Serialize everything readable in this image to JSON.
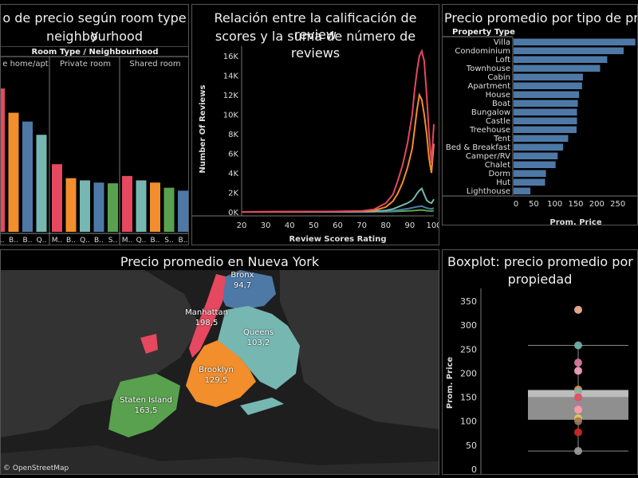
{
  "panel1": {
    "title_line1": "o de precio según room type y",
    "title_line2": "neighbourhood",
    "header": "Room Type  /  Neighbourhood",
    "groups": [
      {
        "label": "e home/apt",
        "ticks": [
          "B..",
          "B..",
          "B..",
          "Q.."
        ],
        "values": [
          195,
          162,
          150,
          132
        ],
        "colors": [
          "#e5485f",
          "#f28e2b",
          "#4e79a7",
          "#76b7b2"
        ]
      },
      {
        "label": "Private room",
        "ticks": [
          "M..",
          "B..",
          "Q..",
          "B..",
          "S.."
        ],
        "values": [
          92,
          73,
          70,
          67,
          66
        ],
        "colors": [
          "#e5485f",
          "#f28e2b",
          "#76b7b2",
          "#4e79a7",
          "#59a14f"
        ]
      },
      {
        "label": "Shared room",
        "ticks": [
          "M..",
          "Q..",
          "B..",
          "S..",
          "B.."
        ],
        "values": [
          76,
          70,
          67,
          60,
          56
        ],
        "colors": [
          "#e5485f",
          "#76b7b2",
          "#f28e2b",
          "#59a14f",
          "#4e79a7"
        ]
      }
    ],
    "ymax": 220
  },
  "panel2": {
    "title_line1": "Relación entre la calificación de review",
    "title_line2": "scores y la suma de número de reviews",
    "chart_data": {
      "type": "line",
      "xlabel": "Review Scores Rating",
      "ylabel": "Number Of Reviews",
      "xlim": [
        20,
        100
      ],
      "ylim": [
        0,
        17000
      ],
      "xticks": [
        20,
        30,
        40,
        50,
        60,
        70,
        80,
        90,
        100
      ],
      "yticks": [
        0,
        2000,
        4000,
        6000,
        8000,
        10000,
        12000,
        14000,
        16000
      ],
      "ytick_labels": [
        "0K",
        "2K",
        "4K",
        "6K",
        "8K",
        "10K",
        "12K",
        "14K",
        "16K"
      ],
      "series": [
        {
          "color": "#e5485f",
          "x": [
            20,
            60,
            70,
            75,
            80,
            83,
            85,
            87,
            89,
            91,
            92,
            93,
            94,
            95,
            96,
            97,
            98,
            99,
            100
          ],
          "y": [
            0,
            50,
            100,
            250,
            900,
            1800,
            3200,
            4800,
            7000,
            10000,
            12500,
            14500,
            16000,
            16500,
            15500,
            12000,
            8000,
            5000,
            9000
          ]
        },
        {
          "color": "#f28e2b",
          "x": [
            20,
            60,
            70,
            75,
            80,
            83,
            85,
            87,
            89,
            91,
            92,
            93,
            94,
            95,
            96,
            97,
            98,
            99,
            100
          ],
          "y": [
            0,
            40,
            80,
            150,
            500,
            1100,
            1900,
            3000,
            4500,
            6500,
            8500,
            10500,
            12000,
            11500,
            10000,
            8000,
            5500,
            4000,
            7000
          ]
        },
        {
          "color": "#76b7b2",
          "x": [
            20,
            60,
            70,
            75,
            80,
            83,
            85,
            87,
            89,
            91,
            92,
            93,
            94,
            95,
            96,
            97,
            98,
            99,
            100
          ],
          "y": [
            0,
            10,
            30,
            60,
            150,
            300,
            500,
            700,
            900,
            1200,
            1500,
            1900,
            2200,
            2400,
            1800,
            1200,
            1000,
            900,
            1300
          ]
        },
        {
          "color": "#4e79a7",
          "x": [
            20,
            60,
            70,
            75,
            80,
            83,
            85,
            87,
            89,
            91,
            92,
            93,
            94,
            95,
            96,
            97,
            98,
            99,
            100
          ],
          "y": [
            0,
            5,
            15,
            30,
            70,
            120,
            180,
            250,
            330,
            420,
            480,
            520,
            560,
            600,
            500,
            400,
            350,
            300,
            400
          ]
        },
        {
          "color": "#59a14f",
          "x": [
            20,
            60,
            70,
            75,
            80,
            83,
            85,
            87,
            89,
            91,
            92,
            93,
            94,
            95,
            96,
            97,
            98,
            99,
            100
          ],
          "y": [
            0,
            2,
            5,
            10,
            25,
            40,
            60,
            80,
            100,
            120,
            140,
            160,
            180,
            200,
            160,
            120,
            100,
            90,
            120
          ]
        }
      ]
    }
  },
  "panel3": {
    "title": "Precio promedio por tipo de propi",
    "header": "Property Type",
    "chart_data": {
      "type": "bar",
      "xlabel": "Prom. Price",
      "xlim": [
        0,
        300
      ],
      "xticks": [
        0,
        50,
        100,
        150,
        200,
        250
      ],
      "categories": [
        "Villa",
        "Condominium",
        "Loft",
        "Townhouse",
        "Cabin",
        "Apartment",
        "House",
        "Boat",
        "Bungalow",
        "Castle",
        "Treehouse",
        "Tent",
        "Bed & Breakfast",
        "Camper/RV",
        "Chalet",
        "Dorm",
        "Hut",
        "Lighthouse"
      ],
      "values": [
        290,
        262,
        223,
        206,
        165,
        163,
        156,
        153,
        151,
        151,
        150,
        130,
        118,
        105,
        100,
        77,
        75,
        40
      ]
    }
  },
  "panel4": {
    "title": "Precio promedio en Nueva York",
    "attribution": "© OpenStreetMap",
    "boroughs": [
      {
        "name": "Bronx",
        "value": "94,7",
        "color": "#4e79a7"
      },
      {
        "name": "Manhattan",
        "value": "198,5",
        "color": "#e5485f"
      },
      {
        "name": "Queens",
        "value": "103,2",
        "color": "#76b7b2"
      },
      {
        "name": "Brooklyn",
        "value": "129,5",
        "color": "#f28e2b"
      },
      {
        "name": "Staten Island",
        "value": "163,5",
        "color": "#59a14f"
      }
    ]
  },
  "panel5": {
    "title_line1": "Boxplot: precio promedio por ti",
    "title_line2": "propiedad",
    "chart_data": {
      "type": "scatter",
      "ylabel": "Prom. Price",
      "ylim": [
        0,
        360
      ],
      "yticks": [
        0,
        50,
        100,
        150,
        200,
        250,
        300,
        350
      ],
      "box": {
        "q1": 103,
        "median": 150,
        "q3": 165,
        "whisker_low": 38,
        "whisker_high": 258
      },
      "points": [
        {
          "y": 332,
          "color": "#f7b89a"
        },
        {
          "y": 258,
          "color": "#76b7b2"
        },
        {
          "y": 222,
          "color": "#e37ba6"
        },
        {
          "y": 205,
          "color": "#f9a8c9"
        },
        {
          "y": 166,
          "color": "#f28e2b"
        },
        {
          "y": 162,
          "color": "#76b7b2"
        },
        {
          "y": 152,
          "color": "#bab0ac"
        },
        {
          "y": 150,
          "color": "#e5485f"
        },
        {
          "y": 130,
          "color": "#b07aa1"
        },
        {
          "y": 124,
          "color": "#ff9da7"
        },
        {
          "y": 106,
          "color": "#edc948"
        },
        {
          "y": 100,
          "color": "#9c755f"
        },
        {
          "y": 77,
          "color": "#d62728"
        },
        {
          "y": 38,
          "color": "#a0a0a0"
        }
      ]
    }
  }
}
